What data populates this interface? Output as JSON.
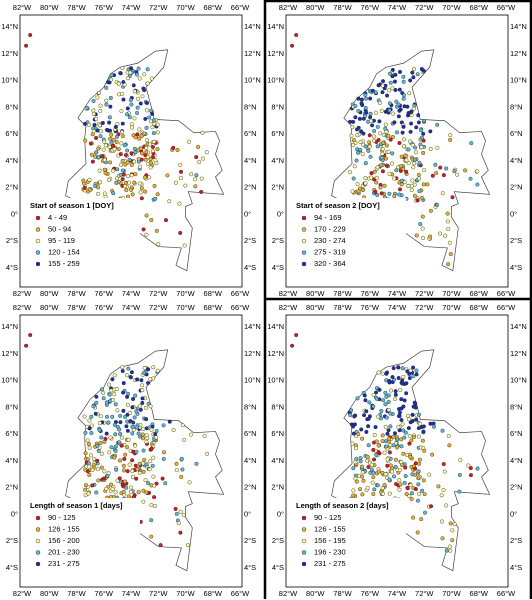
{
  "x_labels": [
    "82°W",
    "80°W",
    "78°W",
    "76°W",
    "74°W",
    "72°W",
    "70°W",
    "68°W",
    "66°W"
  ],
  "y_labels": [
    "14°N",
    "12°N",
    "10°N",
    "8°N",
    "6°N",
    "4°N",
    "2°N",
    "0°",
    "2°S",
    "4°S"
  ],
  "panels": [
    {
      "legend_title": "Start of season 1 [DOY]",
      "legend": [
        {
          "label": "4 - 49",
          "color": "#d7191c"
        },
        {
          "label": "50 - 94",
          "color": "#e8b32e"
        },
        {
          "label": "95 - 119",
          "color": "#ffffa8"
        },
        {
          "label": "120 - 154",
          "color": "#5fb8d8"
        },
        {
          "label": "155 - 259",
          "color": "#1f2fa8"
        }
      ]
    },
    {
      "legend_title": "Start of season 2 [DOY]",
      "legend": [
        {
          "label": "94 - 169",
          "color": "#d7191c"
        },
        {
          "label": "170 - 229",
          "color": "#e8b32e"
        },
        {
          "label": "230 - 274",
          "color": "#ffffa8"
        },
        {
          "label": "275 - 319",
          "color": "#5fb8d8"
        },
        {
          "label": "320 - 364",
          "color": "#1f2fa8"
        }
      ]
    },
    {
      "legend_title": "Length of season 1 [days]",
      "legend": [
        {
          "label": "90 - 125",
          "color": "#d7191c"
        },
        {
          "label": "126 - 155",
          "color": "#e8b32e"
        },
        {
          "label": "156 - 200",
          "color": "#ffffa8"
        },
        {
          "label": "201 - 230",
          "color": "#5fb8d8"
        },
        {
          "label": "231 - 275",
          "color": "#1f2fa8"
        }
      ]
    },
    {
      "legend_title": "Length of season 2 [days]",
      "legend": [
        {
          "label": "90 - 125",
          "color": "#d7191c"
        },
        {
          "label": "126 - 155",
          "color": "#e8b32e"
        },
        {
          "label": "156 - 195",
          "color": "#ffffa8"
        },
        {
          "label": "196 - 230",
          "color": "#5fb8d8"
        },
        {
          "label": "231 - 275",
          "color": "#1f2fa8"
        }
      ]
    }
  ]
}
